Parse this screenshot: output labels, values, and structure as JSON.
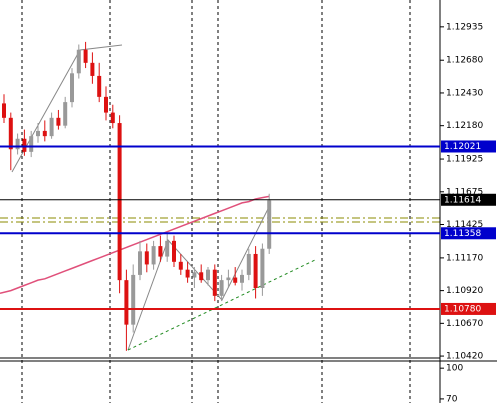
{
  "chart_data": {
    "type": "candlestick",
    "ylim": [
      1.1039,
      1.1314
    ],
    "yticks": [
      1.12935,
      {
        "value": 1.1268,
        "label": "1.12680"
      },
      {
        "value": 1.1243,
        "label": "1.12430"
      },
      {
        "value": 1.1218,
        "label": "1.12180"
      },
      1.11925,
      1.11675,
      1.11425,
      {
        "value": 1.1117,
        "label": "1.11170"
      },
      {
        "value": 1.1092,
        "label": "1.10920"
      },
      {
        "value": 1.1067,
        "label": "1.10670"
      },
      {
        "value": 1.1042,
        "label": "1.10420"
      }
    ],
    "up_color": "#999999",
    "down_color": "#dd1111",
    "candles": [
      [
        1.1235,
        1.1242,
        1.122,
        1.1224
      ],
      [
        1.1224,
        1.1228,
        1.1184,
        1.12
      ],
      [
        1.12,
        1.1212,
        1.1196,
        1.1208
      ],
      [
        1.1208,
        1.1215,
        1.1195,
        1.1198
      ],
      [
        1.1198,
        1.1214,
        1.1194,
        1.121
      ],
      [
        1.121,
        1.122,
        1.1205,
        1.1214
      ],
      [
        1.1214,
        1.1222,
        1.1206,
        1.121
      ],
      [
        1.121,
        1.1228,
        1.1208,
        1.1224
      ],
      [
        1.1224,
        1.123,
        1.1215,
        1.1218
      ],
      [
        1.1218,
        1.124,
        1.1216,
        1.1236
      ],
      [
        1.1236,
        1.1262,
        1.1232,
        1.1258
      ],
      [
        1.1258,
        1.128,
        1.1254,
        1.1276
      ],
      [
        1.1276,
        1.1282,
        1.1262,
        1.1266
      ],
      [
        1.1266,
        1.1274,
        1.125,
        1.1256
      ],
      [
        1.1256,
        1.1266,
        1.1236,
        1.124
      ],
      [
        1.124,
        1.1248,
        1.1222,
        1.1228
      ],
      [
        1.1228,
        1.1234,
        1.1216,
        1.122
      ],
      [
        1.122,
        1.1226,
        1.109,
        1.11
      ],
      [
        1.11,
        1.1108,
        1.1046,
        1.1066
      ],
      [
        1.1066,
        1.1112,
        1.106,
        1.1104
      ],
      [
        1.1104,
        1.113,
        1.11,
        1.1122
      ],
      [
        1.1122,
        1.1128,
        1.1106,
        1.1112
      ],
      [
        1.1112,
        1.113,
        1.1108,
        1.1126
      ],
      [
        1.1126,
        1.1134,
        1.1114,
        1.1118
      ],
      [
        1.1118,
        1.1136,
        1.1114,
        1.113
      ],
      [
        1.113,
        1.1134,
        1.111,
        1.1114
      ],
      [
        1.1114,
        1.112,
        1.1104,
        1.1108
      ],
      [
        1.1108,
        1.1114,
        1.1098,
        1.1102
      ],
      [
        1.1102,
        1.111,
        1.1094,
        1.1106
      ],
      [
        1.1106,
        1.1112,
        1.1098,
        1.11
      ],
      [
        1.11,
        1.111,
        1.1096,
        1.1108
      ],
      [
        1.1108,
        1.1112,
        1.1084,
        1.1088
      ],
      [
        1.1088,
        1.1104,
        1.1084,
        1.11
      ],
      [
        1.11,
        1.1108,
        1.1094,
        1.1102
      ],
      [
        1.1102,
        1.111,
        1.1096,
        1.1098
      ],
      [
        1.1098,
        1.1108,
        1.1092,
        1.1104
      ],
      [
        1.1104,
        1.1124,
        1.11,
        1.112
      ],
      [
        1.112,
        1.1126,
        1.1086,
        1.1094
      ],
      [
        1.1094,
        1.1128,
        1.1088,
        1.1124
      ],
      [
        1.1124,
        1.1166,
        1.112,
        1.1161
      ]
    ],
    "moving_average": {
      "color": "#e0507a",
      "values": [
        1.109,
        1.1092,
        1.1094,
        1.1096,
        1.1098,
        1.11,
        1.1101,
        1.1103,
        1.1105,
        1.1107,
        1.1109,
        1.1111,
        1.1113,
        1.1115,
        1.1117,
        1.1119,
        1.1121,
        1.1123,
        1.1125,
        1.1127,
        1.1129,
        1.1131,
        1.1133,
        1.1135,
        1.1137,
        1.1139,
        1.1141,
        1.1143,
        1.1145,
        1.1147,
        1.1149,
        1.1151,
        1.1153,
        1.1155,
        1.1157,
        1.1159,
        1.116,
        1.1162,
        1.1163,
        1.1164
      ]
    },
    "levels": [
      {
        "value": 1.12021,
        "color": "#0000cc"
      },
      {
        "value": 1.11614,
        "color": "#000000"
      },
      {
        "value": 1.11358,
        "color": "#0000cc"
      },
      {
        "value": 1.1078,
        "label": "1.10780",
        "color": "#dd1111"
      }
    ],
    "indicator": {
      "ylim": [
        107,
        66
      ],
      "yticks": [
        100,
        70
      ]
    }
  }
}
